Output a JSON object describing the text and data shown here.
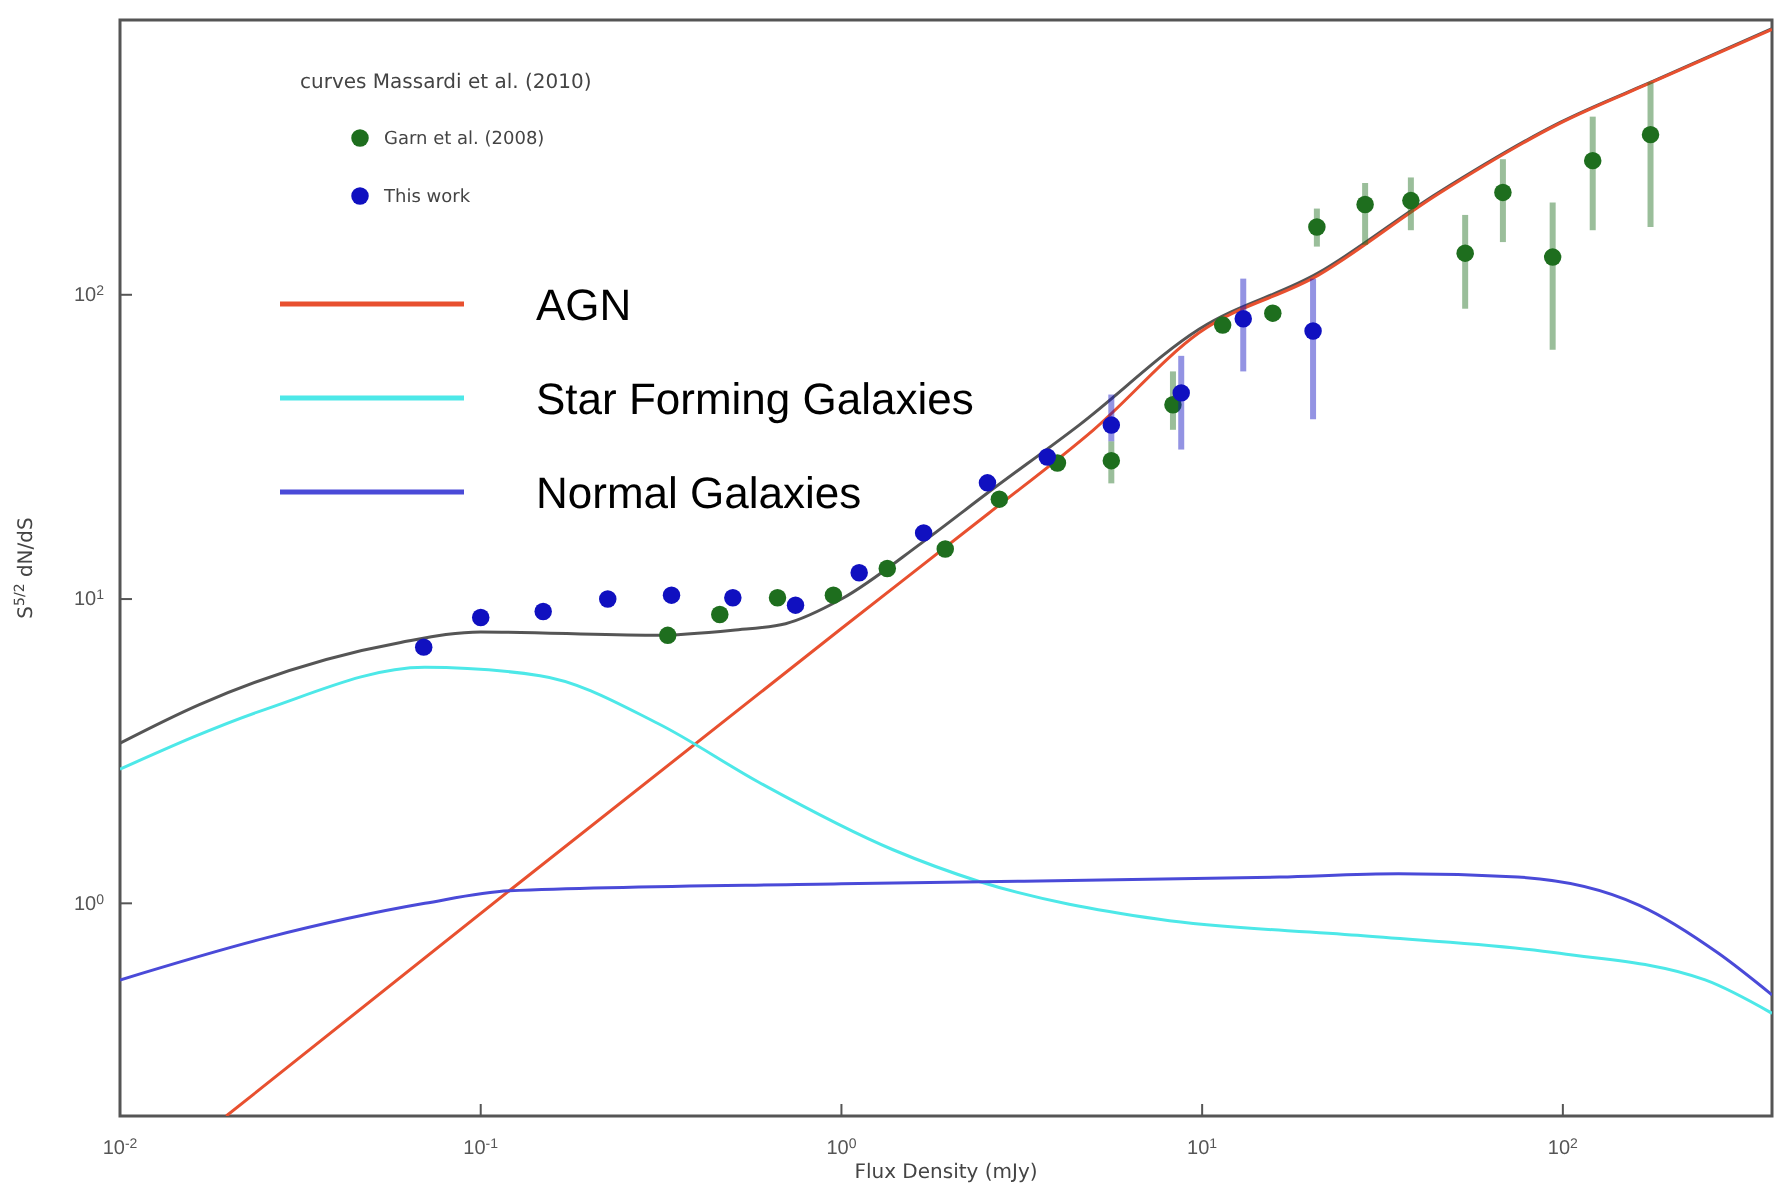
{
  "chart_data": {
    "type": "line",
    "xlabel": "Flux Density (mJy)",
    "ylabel": "S$^{5/2}$ dN/dS",
    "legend_title": "curves  Massardi et al. (2010)",
    "legend": "top left",
    "log": "xy",
    "grid": false,
    "xlim": [
      0.01,
      380
    ],
    "ylim": [
      0.2,
      800
    ],
    "xticks": [
      {
        "value": 0.01,
        "label": "10$^{-2}$"
      },
      {
        "value": 0.1,
        "label": "10$^{-1}$"
      },
      {
        "value": 1,
        "label": "10$^{0}$"
      },
      {
        "value": 10,
        "label": "10$^{1}$"
      },
      {
        "value": 100,
        "label": "10$^{2}$"
      }
    ],
    "yticks": [
      {
        "value": 1,
        "label": "10$^{0}$"
      },
      {
        "value": 10,
        "label": "10$^{1}$"
      },
      {
        "value": 100,
        "label": "10$^{2}$"
      }
    ],
    "series": [
      {
        "color": "#555555",
        "x": [
          0.01,
          0.0166,
          0.06,
          0.1,
          0.3,
          0.5,
          0.7,
          1,
          1.67,
          2.54,
          4.56,
          9.8,
          21,
          45,
          98,
          184,
          380
        ],
        "values": [
          3.36,
          4.5,
          7.2,
          7.8,
          7.6,
          7.9,
          8.3,
          10,
          15.3,
          22.3,
          37.3,
          77,
          118,
          216,
          368,
          512,
          750
        ]
      },
      {
        "name": "AGN",
        "color": "#e8502f",
        "x": [
          0.0197,
          0.12,
          1,
          2.54,
          5,
          9.8,
          21,
          45,
          98,
          184,
          380
        ],
        "values": [
          0.2,
          1.1,
          8,
          19,
          36,
          75,
          116,
          214,
          366,
          510,
          745
        ]
      },
      {
        "name": "Star Forming Galaxies",
        "color": "#4de8e8",
        "x": [
          0.01,
          0.0254,
          0.07,
          0.146,
          0.31,
          0.59,
          1.39,
          2.41,
          7.6,
          27,
          98,
          248,
          380
        ],
        "values": [
          2.76,
          4.35,
          5.97,
          5.6,
          3.9,
          2.5,
          1.5,
          1.18,
          0.886,
          0.785,
          0.685,
          0.56,
          0.435
        ]
      },
      {
        "name": "Normal Galaxies",
        "color": "#4a4ad8",
        "x": [
          0.01,
          0.0254,
          0.07,
          0.12,
          1,
          16.4,
          35,
          75,
          163,
          270,
          380
        ],
        "values": [
          0.56,
          0.77,
          1.0,
          1.1,
          1.16,
          1.22,
          1.25,
          1.22,
          0.985,
          0.685,
          0.5
        ]
      },
      {
        "type": "scatter",
        "name": "Garn et al. (2008)",
        "color": "#1e6e1e",
        "marker": "circle",
        "x": [
          0.33,
          0.46,
          0.665,
          0.95,
          1.34,
          1.94,
          2.74,
          3.97,
          5.6,
          8.3,
          11.4,
          15.7,
          20.8,
          28.3,
          37.9,
          53.6,
          68.2,
          93.7,
          121,
          175
        ],
        "values": [
          7.6,
          8.9,
          10.1,
          10.3,
          12.6,
          14.6,
          21.3,
          28,
          28.5,
          43.5,
          79.5,
          87,
          167,
          198,
          204,
          137,
          217,
          133,
          276,
          336
        ],
        "errors": [
          null,
          null,
          null,
          null,
          null,
          null,
          null,
          null,
          [
            24,
            33
          ],
          [
            36,
            56
          ],
          null,
          null,
          [
            144,
            192
          ],
          [
            146,
            233
          ],
          [
            163,
            243
          ],
          [
            90,
            183
          ],
          [
            149,
            279
          ],
          [
            66,
            201
          ],
          [
            163,
            385
          ],
          [
            167,
            499
          ]
        ]
      },
      {
        "type": "scatter",
        "name": "This work",
        "color": "#1010c0",
        "marker": "circle",
        "x": [
          0.0695,
          0.1,
          0.149,
          0.225,
          0.338,
          0.5,
          0.746,
          1.12,
          1.69,
          2.54,
          3.72,
          5.6,
          8.75,
          13,
          20.3
        ],
        "values": [
          6.95,
          8.7,
          9.1,
          10,
          10.3,
          10.1,
          9.55,
          12.2,
          16.5,
          24.1,
          29.3,
          37.3,
          47.6,
          83.4,
          76
        ],
        "errors": [
          null,
          null,
          null,
          null,
          null,
          null,
          null,
          null,
          null,
          null,
          null,
          [
            33,
            47
          ],
          [
            31,
            63
          ],
          [
            56,
            113
          ],
          [
            39,
            113
          ]
        ]
      }
    ]
  }
}
